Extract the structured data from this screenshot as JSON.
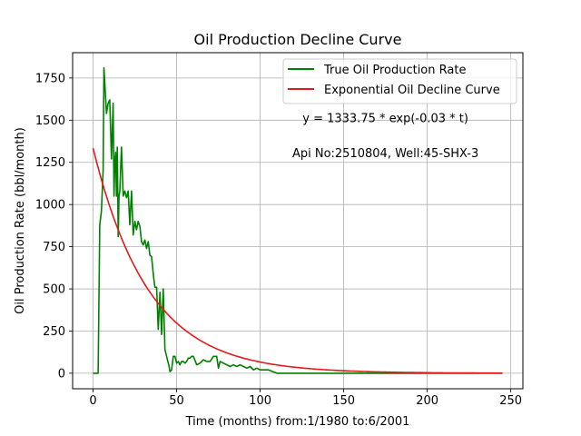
{
  "chart_data": {
    "type": "line",
    "title": "Oil Production Decline Curve",
    "xlabel": "Time (months) from:1/1980 to:6/2001",
    "ylabel": "Oil Production Rate (bbl/month)",
    "xlim": [
      -12.25,
      257.25
    ],
    "ylim": [
      -92,
      1900
    ],
    "xticks": [
      0,
      50,
      100,
      150,
      200,
      250
    ],
    "yticks": [
      0,
      250,
      500,
      750,
      1000,
      1250,
      1500,
      1750
    ],
    "grid": true,
    "legend_position": "top-right",
    "annotations": [
      {
        "text": "y = 1333.75 * exp(-0.03 * t)",
        "x": 175,
        "y": 1487
      },
      {
        "text": "Api No:2510804, Well:45-SHX-3",
        "x": 175,
        "y": 1282
      }
    ],
    "series": [
      {
        "name": "True Oil Production Rate",
        "color": "#008000",
        "x": [
          0,
          1,
          2,
          3,
          4,
          5,
          6,
          6.5,
          7,
          8,
          9,
          10,
          11,
          12,
          12.5,
          13,
          13.5,
          14,
          14.5,
          15,
          15.5,
          16,
          17,
          18,
          19,
          20,
          21,
          22,
          23,
          24,
          25,
          26,
          27,
          28,
          29,
          30,
          31,
          32,
          33,
          34,
          35,
          36,
          37,
          38,
          39,
          40,
          41,
          42,
          43,
          44,
          45,
          45.5,
          46,
          47,
          48,
          49,
          50,
          51,
          52,
          53,
          54,
          55,
          56,
          57,
          58,
          59,
          60,
          62,
          64,
          66,
          68,
          70,
          72,
          74,
          75,
          76,
          78,
          80,
          82,
          84,
          86,
          88,
          90,
          92,
          94,
          96,
          98,
          100,
          105,
          110,
          150,
          200,
          245
        ],
        "y": [
          0,
          0,
          0,
          0,
          880,
          960,
          1200,
          1810,
          1720,
          1540,
          1600,
          1620,
          1270,
          1600,
          1050,
          1260,
          1310,
          1050,
          1340,
          810,
          1050,
          1080,
          1340,
          1050,
          1080,
          1040,
          1080,
          880,
          1080,
          820,
          900,
          850,
          900,
          870,
          780,
          760,
          790,
          740,
          780,
          700,
          690,
          590,
          510,
          510,
          260,
          480,
          230,
          500,
          140,
          100,
          60,
          40,
          10,
          20,
          100,
          100,
          60,
          70,
          50,
          70,
          70,
          60,
          70,
          90,
          90,
          100,
          100,
          50,
          60,
          80,
          70,
          70,
          100,
          100,
          30,
          70,
          60,
          50,
          40,
          50,
          40,
          50,
          40,
          30,
          40,
          20,
          30,
          20,
          20,
          0,
          0,
          0,
          0
        ]
      },
      {
        "name": "Exponential Oil Decline Curve",
        "color": "#e41a1c",
        "model": {
          "a": 1333.75,
          "b": -0.03
        },
        "x_range": [
          0,
          245
        ]
      }
    ]
  }
}
